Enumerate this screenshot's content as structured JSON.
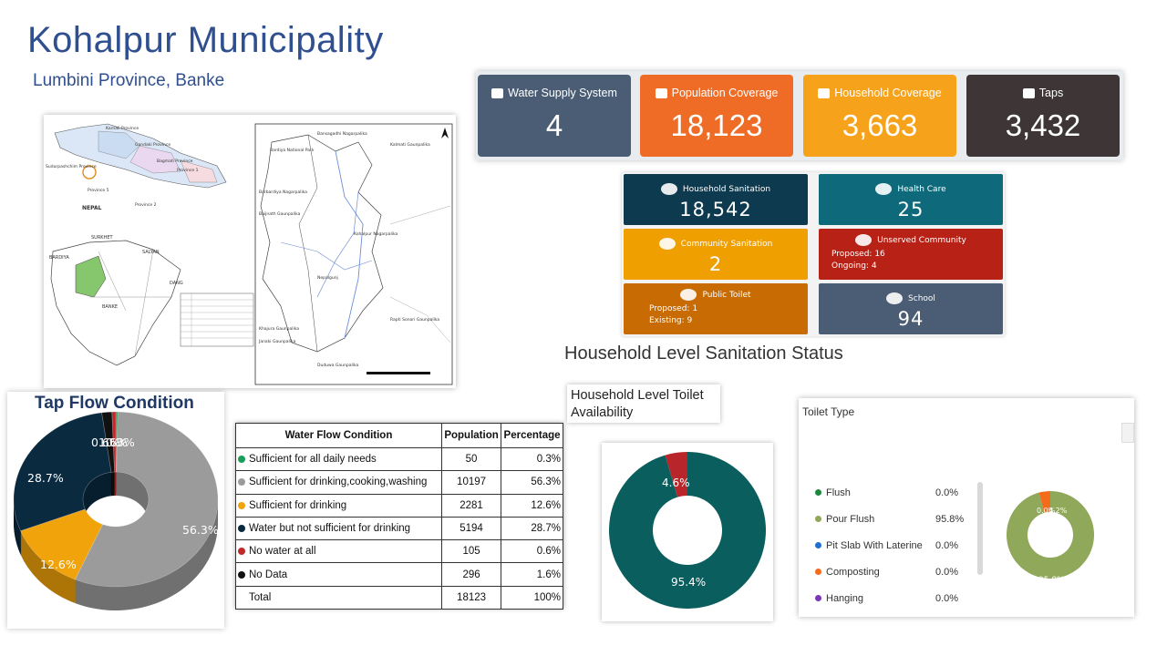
{
  "header": {
    "title": "Kohalpur Municipality",
    "subtitle": "Lumbini Province, Banke"
  },
  "kpis": [
    {
      "label": "Water Supply System",
      "value": "4",
      "color": "#4a5d74",
      "icon": "edit-icon"
    },
    {
      "label": "Population Coverage",
      "value": "18,123",
      "color": "#ef6c27",
      "icon": "users-icon"
    },
    {
      "label": "Household Coverage",
      "value": "3,663",
      "color": "#f7a21b",
      "icon": "home-icon"
    },
    {
      "label": "Taps",
      "value": "3,432",
      "color": "#3e3636",
      "icon": "tap-icon"
    }
  ],
  "sanitation": {
    "heading": "Household Level Sanitation Status",
    "household": {
      "label": "Household Sanitation",
      "value": "18,542",
      "color": "#0e3a4f"
    },
    "health": {
      "label": "Health Care",
      "value": "25",
      "color": "#0e6a7a"
    },
    "community": {
      "label": "Community Sanitation",
      "value": "2",
      "color": "#efa000"
    },
    "unserved": {
      "label": "Unserved Community",
      "line1": "Proposed: 16",
      "line2": "Ongoing: 4",
      "color": "#b82216"
    },
    "public": {
      "label": "Public Toilet",
      "line1": "Proposed: 1",
      "line2": "Existing: 9",
      "color": "#c86b02"
    },
    "school": {
      "label": "School",
      "value": "94",
      "color": "#4a5d74"
    }
  },
  "map": {
    "provinces": [
      "Karnali Province",
      "Gandaki Province",
      "Bagmati Province",
      "Sudurpashchim Province",
      "Province 1",
      "Province 5",
      "Province 2"
    ],
    "country": "NEPAL",
    "districts": [
      "SURKHET",
      "SALYAN",
      "BARDIYA",
      "DANG",
      "BANKE"
    ],
    "local": [
      "Bardiya National Park",
      "Bansagadhi Nagarpalika",
      "Barbardiya Nagarpalika",
      "Kalmati Gaunpalika",
      "Baijnath Gaunpalika",
      "Kohalpur Nagarpalika",
      "Nepalgunj",
      "Khajura Gaunpalika",
      "Rapti Sonari Gaunpalika",
      "Janaki Gaunpalika",
      "Duduwa Gaunpalika"
    ]
  },
  "tap_flow": {
    "title": "Tap Flow Condition",
    "slice_labels": [
      "56.3%",
      "12.6%",
      "28.7%",
      "0.6%",
      "1.6%",
      "0.3%"
    ]
  },
  "flow_table": {
    "headers": [
      "Water Flow Condition",
      "Population",
      "Percentage"
    ],
    "rows": [
      {
        "label": "Sufficient for all daily needs",
        "population": "50",
        "percentage": "0.3%",
        "color": "#1a9e5a"
      },
      {
        "label": "Sufficient for drinking,cooking,washing",
        "population": "10197",
        "percentage": "56.3%",
        "color": "#9b9b9b"
      },
      {
        "label": "Sufficient for drinking",
        "population": "2281",
        "percentage": "12.6%",
        "color": "#f0a30a"
      },
      {
        "label": "Water but not sufficient for drinking",
        "population": "5194",
        "percentage": "28.7%",
        "color": "#0a2a40"
      },
      {
        "label": "No water at all",
        "population": "105",
        "percentage": "0.6%",
        "color": "#c0282a"
      },
      {
        "label": "No Data",
        "population": "296",
        "percentage": "1.6%",
        "color": "#111111"
      }
    ],
    "total": {
      "label": "Total",
      "population": "18123",
      "percentage": "100%"
    }
  },
  "availability": {
    "label": "Household Level Toilet Availability",
    "labels": [
      "4.6%",
      "95.4%"
    ],
    "values": [
      4.6,
      95.4
    ],
    "colors": [
      "#b8252a",
      "#0b5e5e"
    ]
  },
  "toilet_type": {
    "title": "Toilet Type",
    "legend": [
      {
        "name": "Flush",
        "value": "0.0%",
        "color": "#1a8a3a"
      },
      {
        "name": "Pour Flush",
        "value": "95.8%",
        "color": "#8fa85a"
      },
      {
        "name": "Pit Slab With Laterine",
        "value": "0.0%",
        "color": "#1f6fd0"
      },
      {
        "name": "Composting",
        "value": "0.0%",
        "color": "#f36b1b"
      },
      {
        "name": "Hanging",
        "value": "0.0%",
        "color": "#7a35b8"
      }
    ],
    "ring_labels": [
      "95.8%",
      "0.0%",
      "4.2%"
    ]
  },
  "chart_data": [
    {
      "type": "pie",
      "title": "Tap Flow Condition",
      "categories": [
        "Sufficient for all daily needs",
        "Sufficient for drinking,cooking,washing",
        "Sufficient for drinking",
        "Water but not sufficient for drinking",
        "No water at all",
        "No Data"
      ],
      "values": [
        0.3,
        56.3,
        12.6,
        28.7,
        0.6,
        1.6
      ],
      "colors": [
        "#1a9e5a",
        "#9b9b9b",
        "#f0a30a",
        "#0a2a40",
        "#c0282a",
        "#111111"
      ]
    },
    {
      "type": "pie",
      "title": "Household Level Toilet Availability",
      "values": [
        4.6,
        95.4
      ]
    },
    {
      "type": "pie",
      "title": "Toilet Type",
      "categories": [
        "Flush",
        "Pour Flush",
        "Pit Slab With Laterine",
        "Composting",
        "Hanging"
      ],
      "values": [
        0.0,
        95.8,
        0.0,
        0.0,
        0.0
      ]
    }
  ]
}
